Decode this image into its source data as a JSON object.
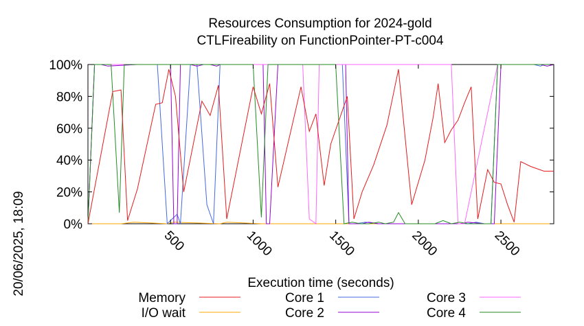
{
  "chart_data": {
    "type": "line",
    "title": "Resources Consumption for 2024-gold",
    "subtitle": "CTLFireability on FunctionPointer-PT-c004",
    "xlabel": "Execution time (seconds)",
    "ylabel": "",
    "side_label": "20/06/2025, 18:09",
    "xlim": [
      0,
      2820
    ],
    "ylim": [
      0,
      100
    ],
    "x_ticks": [
      500,
      1000,
      1500,
      2000,
      2500
    ],
    "x_tick_labels": [
      "500",
      "1000",
      "1500",
      "2000",
      "2500"
    ],
    "y_ticks": [
      0,
      20,
      40,
      60,
      80,
      100
    ],
    "y_tick_labels": [
      "0%",
      "20%",
      "40%",
      "60%",
      "80%",
      "100%"
    ],
    "grid": false,
    "legend_position": "bottom",
    "series": [
      {
        "name": "Memory",
        "color": "#e41a1c",
        "x": [
          0,
          150,
          200,
          240,
          300,
          410,
          450,
          490,
          530,
          580,
          690,
          740,
          790,
          840,
          1000,
          1050,
          1100,
          1150,
          1290,
          1340,
          1380,
          1430,
          1470,
          1570,
          1610,
          1660,
          1730,
          1810,
          1880,
          1960,
          2040,
          2090,
          2120,
          2160,
          2200,
          2240,
          2280,
          2320,
          2360,
          2420,
          2460,
          2500,
          2540,
          2580,
          2620,
          2680,
          2760,
          2800,
          2820
        ],
        "y": [
          0,
          83,
          84,
          2,
          22,
          75,
          76,
          97,
          80,
          20,
          77,
          68,
          87,
          3,
          86,
          69,
          88,
          23,
          86,
          58,
          69,
          24,
          50,
          80,
          3,
          20,
          37,
          62,
          97,
          12,
          40,
          67,
          88,
          51,
          59,
          65,
          76,
          86,
          3,
          34,
          26,
          25,
          12,
          1,
          39,
          36,
          33,
          33,
          33
        ]
      },
      {
        "name": "I/O wait",
        "color": "#ffa500",
        "x": [
          0,
          200,
          280,
          480,
          520,
          800,
          840,
          1050,
          1100,
          2820
        ],
        "y": [
          0,
          0,
          1,
          0,
          1,
          0,
          1,
          0,
          0,
          0
        ]
      },
      {
        "name": "Core 1",
        "color": "#4169e1",
        "x": [
          0,
          40,
          220,
          420,
          480,
          540,
          560,
          620,
          660,
          720,
          760,
          800,
          840,
          1500,
          1540,
          1580,
          1620,
          1680,
          1760,
          1800,
          2200,
          2300,
          2350,
          2400,
          2440,
          2480,
          2500,
          2700,
          2740,
          2760,
          2820
        ],
        "y": [
          0,
          100,
          100,
          100,
          0,
          6,
          0,
          100,
          100,
          12,
          0,
          100,
          100,
          100,
          100,
          0,
          0,
          1,
          0,
          0,
          0,
          0,
          1,
          0,
          0,
          100,
          100,
          100,
          99,
          100,
          100
        ]
      },
      {
        "name": "Core 2",
        "color": "#9400d3",
        "x": [
          0,
          40,
          80,
          120,
          300,
          500,
          520,
          540,
          560,
          620,
          660,
          700,
          740,
          780,
          800,
          1060,
          1080,
          1100,
          1150,
          1200,
          1560,
          1580,
          1600,
          1620,
          1660,
          1700,
          1760,
          1800,
          1850,
          1900,
          2000,
          2100,
          2200,
          2250,
          2300,
          2400,
          2460,
          2500,
          2740,
          2780,
          2820
        ],
        "y": [
          0,
          100,
          100,
          99,
          100,
          100,
          0,
          0,
          100,
          100,
          99,
          100,
          100,
          99,
          100,
          100,
          0,
          0,
          100,
          100,
          100,
          0,
          0,
          0,
          0,
          1,
          0,
          0,
          0,
          0,
          0,
          0,
          0,
          0,
          1,
          0,
          0,
          100,
          100,
          99,
          100
        ]
      },
      {
        "name": "Core 3",
        "color": "#ff66ff",
        "x": [
          0,
          40,
          100,
          300,
          580,
          600,
          1000,
          1020,
          1300,
          1340,
          1380,
          1400,
          1560,
          1600,
          1640,
          2200,
          2240,
          2280,
          2480,
          2820
        ],
        "y": [
          0,
          100,
          100,
          100,
          100,
          100,
          100,
          100,
          100,
          3,
          0,
          100,
          100,
          100,
          100,
          100,
          0,
          0,
          100,
          100
        ]
      },
      {
        "name": "Core 4",
        "color": "#228b22",
        "x": [
          0,
          40,
          140,
          190,
          220,
          260,
          1000,
          1050,
          1090,
          1500,
          1550,
          1600,
          1650,
          1700,
          1760,
          1800,
          1850,
          1880,
          1920,
          2000,
          2100,
          2150,
          2200,
          2250,
          2300,
          2400,
          2440,
          2480,
          2820
        ],
        "y": [
          0,
          100,
          100,
          7,
          100,
          100,
          100,
          4,
          100,
          100,
          0,
          1,
          0,
          0,
          1,
          0,
          1,
          7,
          0,
          0,
          0,
          2,
          0,
          1,
          0,
          0,
          0,
          100,
          100
        ]
      }
    ]
  }
}
